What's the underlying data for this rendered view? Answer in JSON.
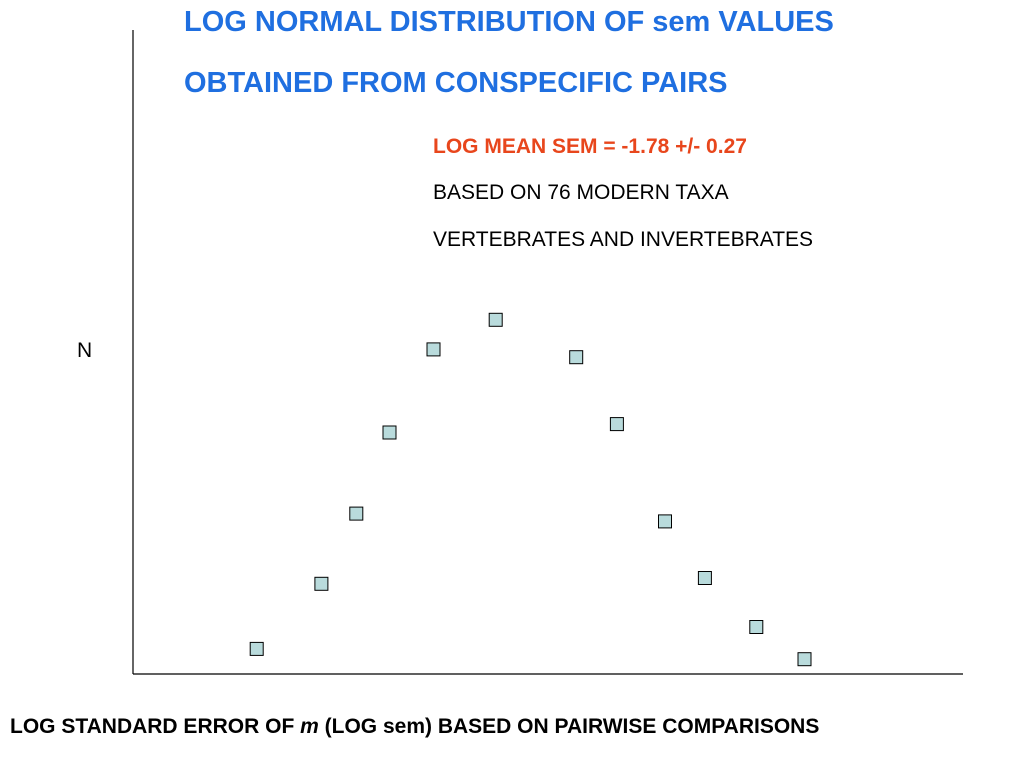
{
  "chart_data": {
    "type": "scatter",
    "title_line1": "LOG NORMAL DISTRIBUTION OF sem VALUES",
    "title_line2": "OBTAINED FROM CONSPECIFIC PAIRS",
    "annotations": [
      "LOG MEAN SEM = -1.78 +/- 0.27",
      "BASED ON 76 MODERN TAXA",
      "VERTEBRATES AND INVERTEBRATES"
    ],
    "ylabel": "N",
    "xlabel_parts": [
      "LOG STANDARD ERROR OF ",
      "m",
      " (LOG sem) BASED ON PAIRWISE COMPARISONS"
    ],
    "grid": false,
    "legend": "none",
    "marker": {
      "shape": "square",
      "fill": "#b9dbdc",
      "stroke": "#000000"
    },
    "axis_color": "#000000",
    "xlim": [
      0,
      100
    ],
    "ylim": [
      0,
      100
    ],
    "points": [
      {
        "x": 14.9,
        "y": 3.9
      },
      {
        "x": 22.7,
        "y": 14.0
      },
      {
        "x": 26.9,
        "y": 24.9
      },
      {
        "x": 30.9,
        "y": 37.5
      },
      {
        "x": 36.2,
        "y": 50.4
      },
      {
        "x": 43.7,
        "y": 55.0
      },
      {
        "x": 53.4,
        "y": 49.2
      },
      {
        "x": 58.3,
        "y": 38.8
      },
      {
        "x": 64.1,
        "y": 23.7
      },
      {
        "x": 68.9,
        "y": 14.9
      },
      {
        "x": 75.1,
        "y": 7.3
      },
      {
        "x": 80.9,
        "y": 2.3
      }
    ]
  }
}
